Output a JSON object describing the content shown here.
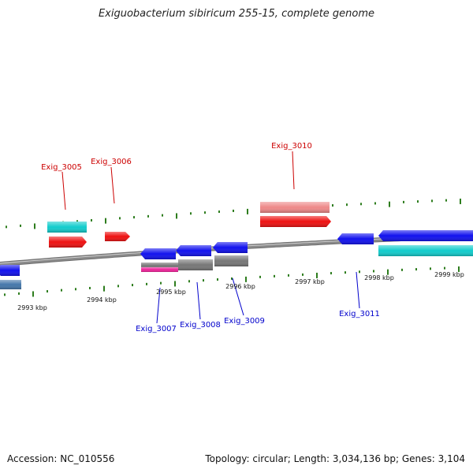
{
  "title": "Exiguobacterium sibiricum 255-15, complete genome",
  "footer": {
    "accession": "Accession: NC_010556",
    "summary": "Topology: circular; Length: 3,034,136 bp; Genes: 3,104"
  },
  "colors": {
    "backbone": "#8a8a8a",
    "tick": "#2e7d1e",
    "forward_label": "#cc0000",
    "reverse_label": "#0000cc",
    "forward_gene": "#ee1111",
    "reverse_gene": "#1111ee",
    "rna_gene": "#11cccc",
    "pseudo_gene": "#ee8888",
    "other_gene": "#777777",
    "misc_feature": "#ee2299",
    "shade_gene": "#4477aa"
  },
  "kbp_labels": [
    "2993 kbp",
    "2994 kbp",
    "2995 kbp",
    "2996 kbp",
    "2997 kbp",
    "2998 kbp",
    "2999 kbp"
  ],
  "gene_labels": {
    "forward": [
      "Exig_3005",
      "Exig_3006",
      "Exig_3010"
    ],
    "reverse": [
      "Exig_3007",
      "Exig_3008",
      "Exig_3009",
      "Exig_3011"
    ]
  }
}
